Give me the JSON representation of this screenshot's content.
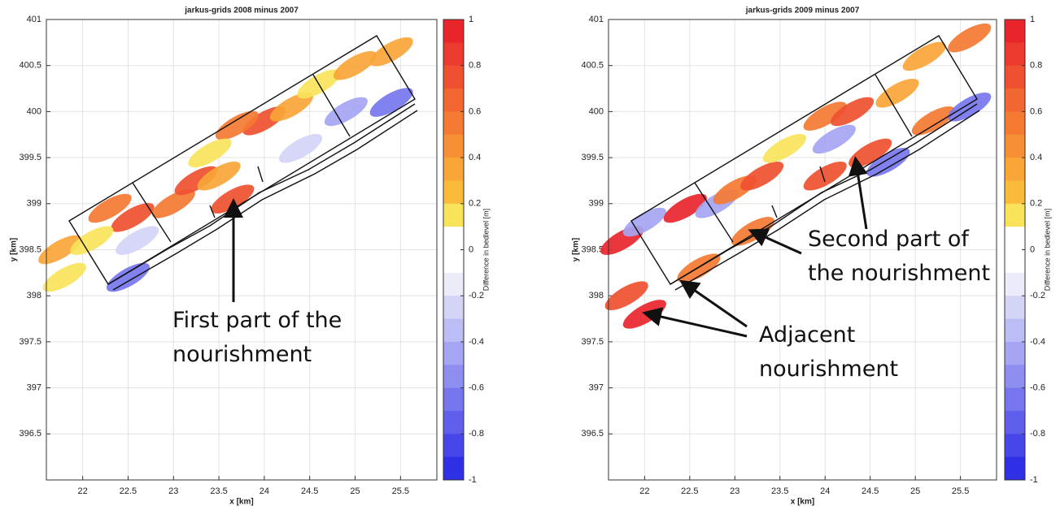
{
  "chart_data": [
    {
      "type": "heatmap",
      "title": "jarkus-grids 2008 minus 2007",
      "x_label": "x [km]",
      "y_label": "y [km]",
      "xlim": [
        21.6,
        25.9
      ],
      "ylim": [
        396,
        401
      ],
      "xticks": [
        22,
        22.5,
        23,
        23.5,
        24,
        24.5,
        25,
        25.5
      ],
      "yticks": [
        396.5,
        397,
        397.5,
        398,
        398.5,
        399,
        399.5,
        400,
        400.5,
        401
      ],
      "grid": true,
      "points": {
        "x": [
          21.75,
          21.8,
          22.3,
          22.55,
          22.1,
          23.0,
          23.25,
          23.5,
          24.0,
          23.7,
          24.3,
          24.6,
          25.0,
          25.4,
          23.65,
          22.6,
          24.9,
          25.4,
          22.5,
          23.4,
          24.4
        ],
        "y": [
          398.5,
          398.2,
          398.95,
          398.85,
          398.6,
          399.0,
          399.25,
          399.3,
          399.9,
          399.85,
          400.05,
          400.3,
          400.5,
          400.65,
          399.05,
          398.6,
          400.0,
          400.1,
          398.2,
          399.55,
          399.6
        ],
        "values": [
          0.4,
          0.2,
          0.6,
          0.8,
          0.2,
          0.6,
          0.8,
          0.4,
          0.8,
          0.6,
          0.4,
          0.2,
          0.4,
          0.4,
          0.8,
          -0.2,
          -0.4,
          -0.6,
          -0.6,
          0.2,
          -0.2
        ]
      },
      "colorbar": {
        "label": "Difference in bedlevel [m]",
        "lim": [
          -1,
          1
        ],
        "ticks": [
          1,
          0.8,
          0.6,
          0.4,
          0.2,
          0,
          -0.2,
          -0.4,
          -0.6,
          -0.8,
          -1
        ],
        "colors": [
          "#e8252b",
          "#ec3a2e",
          "#ef5030",
          "#f26632",
          "#f47a33",
          "#f79035",
          "#f9a537",
          "#fbbb3a",
          "#f8e35a",
          "#ffffff",
          "#ffffff",
          "#ebebfa",
          "#d4d4f7",
          "#bdbdf5",
          "#a5a5f3",
          "#8e8ef0",
          "#7676ee",
          "#5f5feb",
          "#4747e9",
          "#2f2fe6"
        ]
      },
      "annotations": [
        {
          "lines": [
            "First part of the",
            "nourishment"
          ]
        }
      ]
    },
    {
      "type": "heatmap",
      "title": "jarkus-grids 2009 minus 2007",
      "x_label": "x [km]",
      "y_label": "y [km]",
      "xlim": [
        21.6,
        25.9
      ],
      "ylim": [
        396,
        401
      ],
      "xticks": [
        22,
        22.5,
        23,
        23.5,
        24,
        24.5,
        25,
        25.5
      ],
      "yticks": [
        396.5,
        397,
        397.5,
        398,
        398.5,
        399,
        399.5,
        400,
        400.5,
        401
      ],
      "grid": true,
      "points": {
        "x": [
          21.75,
          21.8,
          22.0,
          22.0,
          22.45,
          22.8,
          23.0,
          23.3,
          23.55,
          24.0,
          24.1,
          24.3,
          24.8,
          25.1,
          25.6,
          22.6,
          23.2,
          24.0,
          24.5,
          25.2,
          25.6,
          24.7
        ],
        "y": [
          398.6,
          398.0,
          397.8,
          398.8,
          398.95,
          399.0,
          399.15,
          399.3,
          399.6,
          399.95,
          399.7,
          400.0,
          400.2,
          400.6,
          400.8,
          398.3,
          398.7,
          399.3,
          399.55,
          399.9,
          400.05,
          399.45
        ],
        "values": [
          1,
          0.8,
          1,
          -0.4,
          1,
          -0.4,
          0.6,
          0.8,
          0.2,
          0.6,
          -0.4,
          0.8,
          0.4,
          0.4,
          0.6,
          0.6,
          0.6,
          0.8,
          0.8,
          0.6,
          -0.6,
          -0.6
        ]
      },
      "colorbar": {
        "label": "Difference in bedlevel [m]",
        "lim": [
          -1,
          1
        ],
        "ticks": [
          1,
          0.8,
          0.6,
          0.4,
          0.2,
          0,
          -0.2,
          -0.4,
          -0.6,
          -0.8,
          -1
        ],
        "colors": [
          "#e8252b",
          "#ec3a2e",
          "#ef5030",
          "#f26632",
          "#f47a33",
          "#f79035",
          "#f9a537",
          "#fbbb3a",
          "#f8e35a",
          "#ffffff",
          "#ffffff",
          "#ebebfa",
          "#d4d4f7",
          "#bdbdf5",
          "#a5a5f3",
          "#8e8ef0",
          "#7676ee",
          "#5f5feb",
          "#4747e9",
          "#2f2fe6"
        ]
      },
      "annotations": [
        {
          "lines": [
            "Second part of",
            "the nourishment"
          ]
        },
        {
          "lines": [
            "Adjacent",
            "nourishment"
          ]
        }
      ]
    }
  ]
}
